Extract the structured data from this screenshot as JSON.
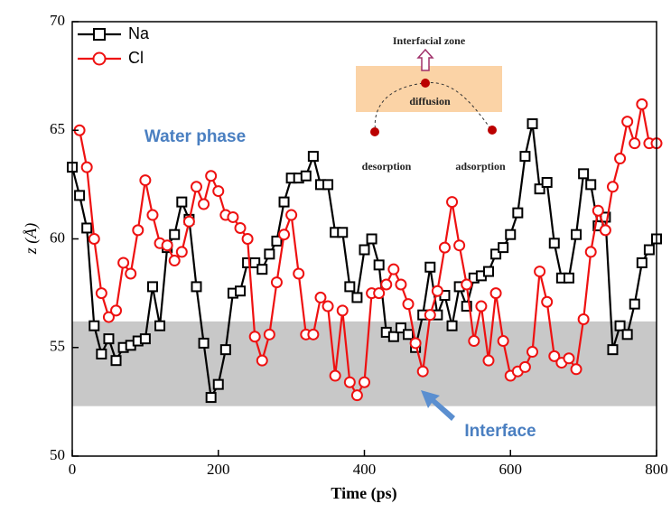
{
  "chart_data": {
    "type": "line",
    "xlabel": "Time (ps)",
    "ylabel": "z (Å)",
    "xlim": [
      0,
      800
    ],
    "xticks": [
      0,
      200,
      400,
      600,
      800
    ],
    "ylim": [
      50,
      70
    ],
    "yticks": [
      50,
      55,
      60,
      65,
      70
    ],
    "legend": "upper left",
    "band": {
      "range": [
        52.3,
        56.2
      ],
      "color": "#c8c8c8"
    },
    "annotations": [
      "Water phase",
      "Interface",
      "Interfacial zone",
      "diffusion",
      "desorption",
      "adsorption"
    ],
    "x": [
      0,
      10,
      20,
      30,
      40,
      50,
      60,
      70,
      80,
      90,
      100,
      110,
      120,
      130,
      140,
      150,
      160,
      170,
      180,
      190,
      200,
      210,
      220,
      230,
      240,
      250,
      260,
      270,
      280,
      290,
      300,
      310,
      320,
      330,
      340,
      350,
      360,
      370,
      380,
      390,
      400,
      410,
      420,
      430,
      440,
      450,
      460,
      470,
      480,
      490,
      500,
      510,
      520,
      530,
      540,
      550,
      560,
      570,
      580,
      590,
      600,
      610,
      620,
      630,
      640,
      650,
      660,
      670,
      680,
      690,
      700,
      710,
      720,
      730,
      740,
      750,
      760,
      770,
      780,
      790,
      800
    ],
    "series": [
      {
        "name": "Na",
        "color": "#000000",
        "marker": "square",
        "values": [
          63.3,
          62.0,
          60.5,
          56.0,
          54.7,
          55.4,
          54.4,
          55.0,
          55.1,
          55.3,
          55.4,
          57.8,
          56.0,
          59.6,
          60.2,
          61.7,
          60.9,
          57.8,
          55.2,
          52.7,
          53.3,
          54.9,
          57.5,
          57.6,
          58.9,
          58.9,
          58.6,
          59.3,
          59.9,
          61.7,
          62.8,
          62.8,
          62.9,
          63.8,
          62.5,
          62.5,
          60.3,
          60.3,
          57.8,
          57.3,
          59.5,
          60.0,
          58.8,
          55.7,
          55.5,
          55.9,
          55.6,
          55.0,
          56.5,
          58.7,
          56.5,
          57.4,
          56.0,
          57.8,
          56.9,
          58.2,
          58.3,
          58.5,
          59.3,
          59.6,
          60.2,
          61.2,
          63.8,
          65.3,
          62.3,
          62.6,
          59.8,
          58.2,
          58.2,
          60.2,
          63.0,
          62.5,
          60.6,
          61.0,
          54.9,
          56.0,
          55.6,
          57.0,
          58.9,
          59.5,
          60.0
        ]
      },
      {
        "name": "Cl",
        "color": "#ee1111",
        "marker": "circle",
        "values": [
          null,
          65.0,
          63.3,
          60.0,
          57.5,
          56.4,
          56.7,
          58.9,
          58.4,
          60.4,
          62.7,
          61.1,
          59.8,
          59.7,
          59.0,
          59.4,
          60.8,
          62.4,
          61.6,
          62.9,
          62.2,
          61.1,
          61.0,
          60.5,
          60.0,
          55.5,
          54.4,
          55.6,
          58.0,
          60.2,
          61.1,
          58.4,
          55.6,
          55.6,
          57.3,
          56.9,
          53.7,
          56.7,
          53.4,
          52.8,
          53.4,
          57.5,
          57.5,
          57.9,
          58.6,
          57.9,
          57.0,
          55.2,
          53.9,
          56.5,
          57.6,
          59.6,
          61.7,
          59.7,
          57.9,
          55.3,
          56.9,
          54.4,
          57.5,
          55.3,
          53.7,
          53.9,
          54.1,
          54.8,
          58.5,
          57.1,
          54.6,
          54.3,
          54.5,
          54.0,
          56.3,
          59.4,
          61.3,
          60.4,
          62.4,
          63.7,
          65.4,
          64.4,
          66.2,
          64.4,
          64.4
        ]
      }
    ]
  }
}
